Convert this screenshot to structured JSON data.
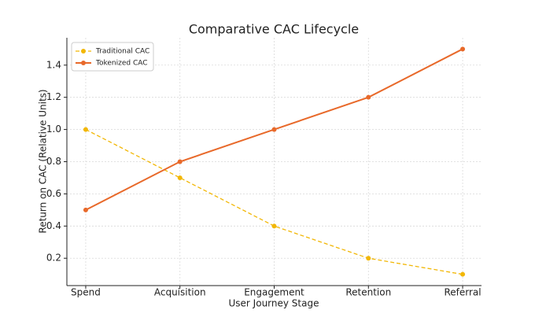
{
  "chart_data": {
    "type": "line",
    "title": "Comparative CAC Lifecycle",
    "x_label": "User Journey Stage",
    "y_label": "Return on CAC (Relative Units)",
    "categories": [
      "Spend",
      "Acquisition",
      "Engagement",
      "Retention",
      "Referral"
    ],
    "series": [
      {
        "name": "Traditional CAC",
        "color": "#f2b705",
        "dashed": true,
        "values": [
          1.0,
          0.7,
          0.4,
          0.2,
          0.1
        ]
      },
      {
        "name": "Tokenized CAC",
        "color": "#e8692a",
        "dashed": false,
        "values": [
          0.5,
          0.8,
          1.0,
          1.2,
          1.5
        ]
      }
    ],
    "ylim": [
      0.03,
      1.57
    ],
    "yticks": [
      0.2,
      0.4,
      0.6,
      0.8,
      {
        "value": 1,
        "label": "1.0"
      },
      1.2,
      1.4
    ],
    "grid": true,
    "legend": "upper-left"
  }
}
